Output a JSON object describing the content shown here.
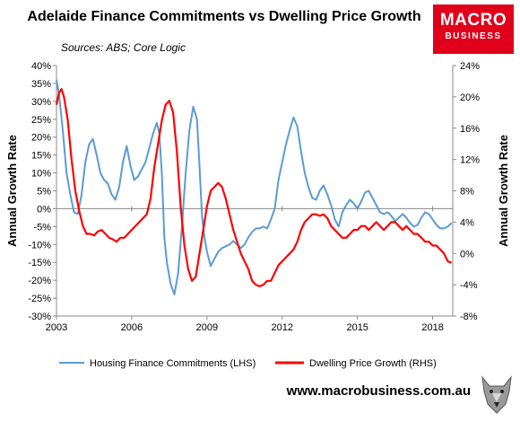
{
  "header": {
    "title": "Adelaide Finance Commitments vs Dwelling Price Growth",
    "subtitle": "Sources: ABS; Core Logic",
    "logo_line1": "MACRO",
    "logo_line2": "BUSINESS"
  },
  "footer": {
    "url": "www.macrobusiness.com.au"
  },
  "colors": {
    "lhs_series": "#5b9bd5",
    "rhs_series": "#ff0000",
    "brand": "#e0001b"
  },
  "chart_data": {
    "type": "line",
    "title": "Adelaide Finance Commitments vs Dwelling Price Growth",
    "subtitle": "Sources: ABS; Core Logic",
    "ylabel_left": "Annual Growth Rate",
    "ylabel_right": "Annual Growth Rate",
    "xlim": [
      2003,
      2018.8
    ],
    "ylim_left": [
      -30,
      40
    ],
    "ylim_right": [
      -8,
      24
    ],
    "x_ticks": [
      {
        "value": 2003,
        "label": "2003"
      },
      {
        "value": 2006,
        "label": "2006"
      },
      {
        "value": 2009,
        "label": "2009"
      },
      {
        "value": 2012,
        "label": "2012"
      },
      {
        "value": 2015,
        "label": "2015"
      },
      {
        "value": 2018,
        "label": "2018"
      }
    ],
    "y_ticks_left": [
      {
        "value": 40,
        "label": "40%"
      },
      {
        "value": 35,
        "label": "35%"
      },
      {
        "value": 30,
        "label": "30%"
      },
      {
        "value": 25,
        "label": "25%"
      },
      {
        "value": 20,
        "label": "20%"
      },
      {
        "value": 15,
        "label": "15%"
      },
      {
        "value": 10,
        "label": "10%"
      },
      {
        "value": 5,
        "label": "5%"
      },
      {
        "value": 0,
        "label": "0%"
      },
      {
        "value": -5,
        "label": "-5%"
      },
      {
        "value": -10,
        "label": "-10%"
      },
      {
        "value": -15,
        "label": "-15%"
      },
      {
        "value": -20,
        "label": "-20%"
      },
      {
        "value": -25,
        "label": "-25%"
      },
      {
        "value": -30,
        "label": "-30%"
      }
    ],
    "y_ticks_right": [
      {
        "value": 24,
        "label": "24%"
      },
      {
        "value": 20,
        "label": "20%"
      },
      {
        "value": 16,
        "label": "16%"
      },
      {
        "value": 12,
        "label": "12%"
      },
      {
        "value": 8,
        "label": "8%"
      },
      {
        "value": 4,
        "label": "4%"
      },
      {
        "value": 0,
        "label": "0%"
      },
      {
        "value": -4,
        "label": "-4%"
      },
      {
        "value": -8,
        "label": "-8%"
      }
    ],
    "grid": false,
    "legend_position": "bottom",
    "series": [
      {
        "name": "Housing Finance Commitments (LHS)",
        "axis": "left",
        "points": [
          [
            2003.0,
            36
          ],
          [
            2003.1,
            32
          ],
          [
            2003.25,
            22
          ],
          [
            2003.4,
            10
          ],
          [
            2003.55,
            4
          ],
          [
            2003.7,
            -1
          ],
          [
            2003.85,
            -1.5
          ],
          [
            2004.0,
            4
          ],
          [
            2004.15,
            13
          ],
          [
            2004.3,
            18
          ],
          [
            2004.45,
            19.5
          ],
          [
            2004.6,
            15
          ],
          [
            2004.75,
            10
          ],
          [
            2004.9,
            8
          ],
          [
            2005.05,
            7
          ],
          [
            2005.2,
            4
          ],
          [
            2005.35,
            2.5
          ],
          [
            2005.5,
            6
          ],
          [
            2005.65,
            13
          ],
          [
            2005.8,
            17.5
          ],
          [
            2005.95,
            12
          ],
          [
            2006.1,
            8
          ],
          [
            2006.25,
            9
          ],
          [
            2006.4,
            11
          ],
          [
            2006.55,
            13
          ],
          [
            2006.7,
            17
          ],
          [
            2006.85,
            21
          ],
          [
            2007.0,
            24
          ],
          [
            2007.1,
            21
          ],
          [
            2007.2,
            10
          ],
          [
            2007.3,
            -8
          ],
          [
            2007.4,
            -15
          ],
          [
            2007.55,
            -21
          ],
          [
            2007.7,
            -24
          ],
          [
            2007.85,
            -18
          ],
          [
            2008.0,
            -5
          ],
          [
            2008.15,
            10
          ],
          [
            2008.3,
            22
          ],
          [
            2008.45,
            28.5
          ],
          [
            2008.6,
            25
          ],
          [
            2008.7,
            12
          ],
          [
            2008.8,
            -2
          ],
          [
            2008.9,
            -8
          ],
          [
            2009.0,
            -12
          ],
          [
            2009.15,
            -16
          ],
          [
            2009.3,
            -14
          ],
          [
            2009.45,
            -12
          ],
          [
            2009.6,
            -11
          ],
          [
            2009.75,
            -10.5
          ],
          [
            2009.9,
            -10
          ],
          [
            2010.05,
            -9
          ],
          [
            2010.2,
            -10
          ],
          [
            2010.35,
            -11
          ],
          [
            2010.5,
            -10
          ],
          [
            2010.65,
            -8
          ],
          [
            2010.8,
            -6.5
          ],
          [
            2010.95,
            -5.5
          ],
          [
            2011.1,
            -5.5
          ],
          [
            2011.25,
            -5
          ],
          [
            2011.4,
            -5.5
          ],
          [
            2011.55,
            -3
          ],
          [
            2011.7,
            0
          ],
          [
            2011.85,
            8
          ],
          [
            2012.0,
            13
          ],
          [
            2012.15,
            18
          ],
          [
            2012.3,
            22
          ],
          [
            2012.45,
            25.5
          ],
          [
            2012.6,
            23
          ],
          [
            2012.75,
            16
          ],
          [
            2012.9,
            10
          ],
          [
            2013.05,
            6
          ],
          [
            2013.2,
            3
          ],
          [
            2013.35,
            2.5
          ],
          [
            2013.5,
            5
          ],
          [
            2013.65,
            6.5
          ],
          [
            2013.8,
            4
          ],
          [
            2013.95,
            1
          ],
          [
            2014.1,
            -3
          ],
          [
            2014.25,
            -5
          ],
          [
            2014.4,
            -1
          ],
          [
            2014.55,
            1
          ],
          [
            2014.7,
            2.5
          ],
          [
            2014.85,
            1.5
          ],
          [
            2015.0,
            0
          ],
          [
            2015.15,
            2
          ],
          [
            2015.3,
            4.5
          ],
          [
            2015.45,
            5
          ],
          [
            2015.6,
            3
          ],
          [
            2015.75,
            1
          ],
          [
            2015.9,
            -1
          ],
          [
            2016.05,
            -1.5
          ],
          [
            2016.2,
            -1
          ],
          [
            2016.35,
            -2
          ],
          [
            2016.5,
            -3.5
          ],
          [
            2016.65,
            -2.5
          ],
          [
            2016.8,
            -1.5
          ],
          [
            2016.95,
            -2.5
          ],
          [
            2017.1,
            -4
          ],
          [
            2017.25,
            -5
          ],
          [
            2017.4,
            -4.5
          ],
          [
            2017.55,
            -2.5
          ],
          [
            2017.7,
            -1
          ],
          [
            2017.85,
            -1.5
          ],
          [
            2018.0,
            -3
          ],
          [
            2018.15,
            -4.5
          ],
          [
            2018.3,
            -5.5
          ],
          [
            2018.45,
            -5.5
          ],
          [
            2018.6,
            -5
          ],
          [
            2018.75,
            -4
          ]
        ]
      },
      {
        "name": "Dwelling Price Growth (RHS)",
        "axis": "right",
        "points": [
          [
            2003.0,
            19
          ],
          [
            2003.1,
            20.5
          ],
          [
            2003.2,
            21
          ],
          [
            2003.3,
            20
          ],
          [
            2003.45,
            17
          ],
          [
            2003.6,
            12
          ],
          [
            2003.75,
            8
          ],
          [
            2003.9,
            5.5
          ],
          [
            2004.05,
            3.5
          ],
          [
            2004.2,
            2.5
          ],
          [
            2004.35,
            2.5
          ],
          [
            2004.5,
            2.3
          ],
          [
            2004.65,
            2.8
          ],
          [
            2004.8,
            3
          ],
          [
            2004.95,
            2.5
          ],
          [
            2005.1,
            2
          ],
          [
            2005.25,
            1.8
          ],
          [
            2005.4,
            1.5
          ],
          [
            2005.55,
            2
          ],
          [
            2005.7,
            2
          ],
          [
            2005.85,
            2.5
          ],
          [
            2006.0,
            3
          ],
          [
            2006.15,
            3.5
          ],
          [
            2006.3,
            4
          ],
          [
            2006.45,
            4.5
          ],
          [
            2006.6,
            5
          ],
          [
            2006.75,
            7
          ],
          [
            2006.9,
            11
          ],
          [
            2007.05,
            14
          ],
          [
            2007.2,
            17
          ],
          [
            2007.35,
            19
          ],
          [
            2007.5,
            19.5
          ],
          [
            2007.65,
            18
          ],
          [
            2007.8,
            13
          ],
          [
            2007.95,
            6
          ],
          [
            2008.1,
            1
          ],
          [
            2008.25,
            -2
          ],
          [
            2008.4,
            -3.5
          ],
          [
            2008.55,
            -3
          ],
          [
            2008.7,
            0
          ],
          [
            2008.85,
            3
          ],
          [
            2009.0,
            6
          ],
          [
            2009.15,
            8
          ],
          [
            2009.3,
            8.5
          ],
          [
            2009.45,
            9
          ],
          [
            2009.6,
            8.5
          ],
          [
            2009.75,
            7
          ],
          [
            2009.9,
            5
          ],
          [
            2010.05,
            3
          ],
          [
            2010.2,
            1.5
          ],
          [
            2010.35,
            0
          ],
          [
            2010.5,
            -1
          ],
          [
            2010.65,
            -2
          ],
          [
            2010.8,
            -3.5
          ],
          [
            2010.95,
            -4
          ],
          [
            2011.1,
            -4.2
          ],
          [
            2011.25,
            -4
          ],
          [
            2011.4,
            -3.5
          ],
          [
            2011.55,
            -3.5
          ],
          [
            2011.7,
            -2.5
          ],
          [
            2011.85,
            -1.5
          ],
          [
            2012.0,
            -1
          ],
          [
            2012.15,
            -0.5
          ],
          [
            2012.3,
            0
          ],
          [
            2012.45,
            0.5
          ],
          [
            2012.6,
            1.5
          ],
          [
            2012.75,
            3
          ],
          [
            2012.9,
            4
          ],
          [
            2013.05,
            4.5
          ],
          [
            2013.2,
            5
          ],
          [
            2013.35,
            5
          ],
          [
            2013.5,
            4.8
          ],
          [
            2013.65,
            5
          ],
          [
            2013.8,
            4.5
          ],
          [
            2013.95,
            3.5
          ],
          [
            2014.1,
            3
          ],
          [
            2014.25,
            2.5
          ],
          [
            2014.4,
            2
          ],
          [
            2014.55,
            2
          ],
          [
            2014.7,
            2.5
          ],
          [
            2014.85,
            3
          ],
          [
            2015.0,
            3
          ],
          [
            2015.15,
            3.5
          ],
          [
            2015.3,
            3.5
          ],
          [
            2015.45,
            3
          ],
          [
            2015.6,
            3.5
          ],
          [
            2015.75,
            4
          ],
          [
            2015.9,
            3.5
          ],
          [
            2016.05,
            3
          ],
          [
            2016.2,
            3.5
          ],
          [
            2016.35,
            4
          ],
          [
            2016.5,
            4
          ],
          [
            2016.65,
            3.5
          ],
          [
            2016.8,
            3
          ],
          [
            2016.95,
            3.5
          ],
          [
            2017.1,
            3
          ],
          [
            2017.25,
            2.5
          ],
          [
            2017.4,
            2.5
          ],
          [
            2017.55,
            2
          ],
          [
            2017.7,
            1.5
          ],
          [
            2017.85,
            1.5
          ],
          [
            2018.0,
            1
          ],
          [
            2018.15,
            1
          ],
          [
            2018.3,
            0.5
          ],
          [
            2018.45,
            0
          ],
          [
            2018.6,
            -1
          ],
          [
            2018.75,
            -1.2
          ]
        ]
      }
    ]
  }
}
